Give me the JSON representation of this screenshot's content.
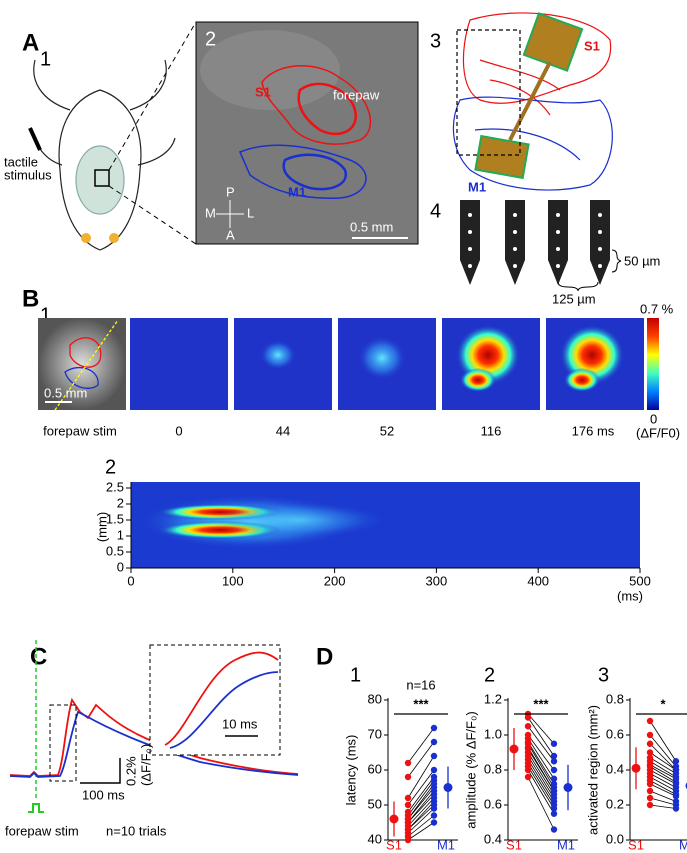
{
  "panel_a": {
    "label": "A",
    "sub": "1",
    "stim": [
      "tactile",
      "stimulus"
    ],
    "image2": {
      "label": "2",
      "s1": "S1",
      "forepaw": "forepaw",
      "m1": "M1",
      "compass": {
        "p": "P",
        "m": "M",
        "l": "L",
        "a": "A"
      },
      "scale": "0.5 mm"
    },
    "probe3": {
      "label": "3",
      "s1": "S1",
      "m1": "M1"
    },
    "probe4": {
      "label": "4",
      "spacing_v": "50 µm",
      "spacing_h": "125 µm"
    }
  },
  "panel_b": {
    "label": "B",
    "sub": "1",
    "scale": "0.5 mm",
    "frame_labels": [
      "forepaw stim",
      "0",
      "44",
      "52",
      "116",
      "176 ms"
    ],
    "colorbar": {
      "max": "0.7 %",
      "min": "0",
      "unit": "(ΔF/F0)"
    },
    "kymo": {
      "label": "2",
      "xlim": [
        0,
        500
      ],
      "xticks": [
        0,
        100,
        200,
        300,
        400,
        500
      ],
      "xlabel": "(ms)",
      "ylim": [
        0,
        2.5
      ],
      "yticks": [
        0,
        0.5,
        1,
        1.5,
        2,
        2.5
      ],
      "ylabel": "(mm)"
    }
  },
  "panel_c": {
    "label": "C",
    "scale_time": "100 ms",
    "scale_amp": "0.2%",
    "scale_unit": "(ΔF/F₀)",
    "inset_scale": "10 ms",
    "stim": "forepaw stim",
    "n": "n=10 trials"
  },
  "panel_d": {
    "label": "D",
    "plots": [
      {
        "label": "1",
        "ylabel": "latency (ms)",
        "ylim": [
          40,
          80
        ],
        "yticks": [
          40,
          50,
          60,
          70,
          80
        ],
        "categories": [
          "S1",
          "M1"
        ],
        "n": "n=16",
        "sig": "***",
        "s1": [
          40,
          41,
          42,
          43,
          43,
          44,
          45,
          45,
          46,
          46,
          47,
          48,
          50,
          52,
          58,
          62
        ],
        "m1": [
          45,
          47,
          49,
          50,
          51,
          52,
          53,
          54,
          55,
          56,
          57,
          58,
          60,
          64,
          68,
          72
        ],
        "means": [
          46,
          55
        ],
        "errors": [
          5,
          6
        ]
      },
      {
        "label": "2",
        "ylabel": "amplitude (% ΔF/F₀)",
        "ylim": [
          0.4,
          1.2
        ],
        "yticks": [
          0.4,
          0.6,
          0.8,
          {
            "value": 1,
            "label": "1.0"
          },
          1.2
        ],
        "categories": [
          "S1",
          "M1"
        ],
        "sig": "***",
        "s1": [
          1.12,
          1.1,
          1.05,
          1.0,
          0.98,
          0.96,
          0.95,
          0.93,
          0.92,
          0.9,
          0.88,
          0.86,
          0.84,
          0.82,
          0.8,
          0.76
        ],
        "m1": [
          0.95,
          0.88,
          0.85,
          0.8,
          0.75,
          0.72,
          0.7,
          0.68,
          0.68,
          0.66,
          0.64,
          0.62,
          0.6,
          0.58,
          0.55,
          0.46
        ],
        "means": [
          0.92,
          0.7
        ],
        "errors": [
          0.12,
          0.13
        ]
      },
      {
        "label": "3",
        "ylabel": "activated region (mm²)",
        "ylim": [
          0,
          0.8
        ],
        "yticks": [
          {
            "value": 0,
            "label": "0.0"
          },
          0.2,
          0.4,
          0.6,
          0.8
        ],
        "categories": [
          "S1",
          "M1"
        ],
        "sig": "*",
        "s1": [
          0.68,
          0.6,
          0.55,
          0.5,
          0.47,
          0.45,
          0.43,
          0.42,
          0.4,
          0.38,
          0.36,
          0.34,
          0.32,
          0.28,
          0.24,
          0.2
        ],
        "m1": [
          0.45,
          0.42,
          0.4,
          0.4,
          0.38,
          0.36,
          0.35,
          0.33,
          0.32,
          0.3,
          0.28,
          0.26,
          0.25,
          0.22,
          0.2,
          0.18
        ],
        "means": [
          0.41,
          0.31
        ],
        "errors": [
          0.12,
          0.09
        ]
      }
    ]
  }
}
